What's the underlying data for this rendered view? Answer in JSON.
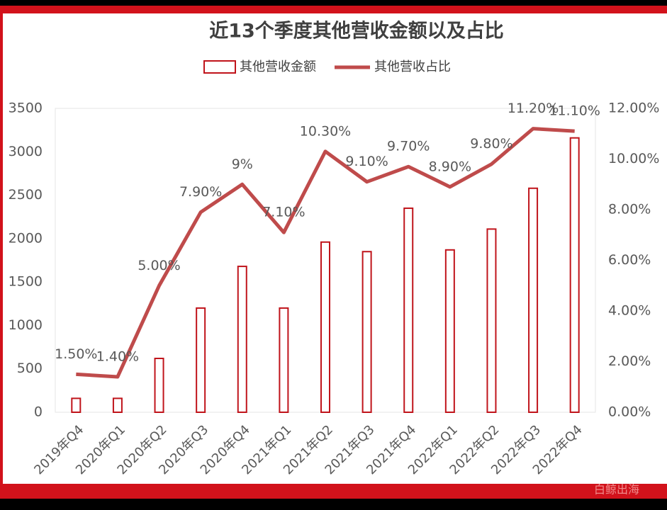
{
  "chart_data": {
    "type": "bar-line",
    "title": "近13个季度其他营收金额以及占比",
    "categories": [
      "2019年Q4",
      "2020年Q1",
      "2020年Q2",
      "2020年Q3",
      "2020年Q4",
      "2021年Q1",
      "2021年Q2",
      "2021年Q3",
      "2021年Q4",
      "2022年Q1",
      "2022年Q2",
      "2022年Q3",
      "2022年Q4"
    ],
    "series": [
      {
        "name": "其他营收金额",
        "color": "#c0141b",
        "values": [
          160,
          160,
          620,
          1200,
          1680,
          1200,
          1960,
          1850,
          2350,
          1870,
          2110,
          2580,
          3160
        ]
      },
      {
        "name": "其他营收占比",
        "color": "#bf4b4b",
        "axis": "y2",
        "values": [
          1.5,
          1.4,
          5.0,
          7.9,
          9,
          7.1,
          10.3,
          9.1,
          9.7,
          8.9,
          9.8,
          11.2,
          11.1
        ],
        "value_labels": [
          "1.50%",
          "1.40%",
          "5.00%",
          "7.90%",
          "9%",
          "7.10%",
          "10.30%",
          "9.10%",
          "9.70%",
          "8.90%",
          "9.80%",
          "11.20%",
          "11.10%"
        ]
      }
    ],
    "ylim": [
      0,
      3500
    ],
    "yticks": [
      0,
      500,
      1000,
      1500,
      2000,
      2500,
      3000,
      3500
    ],
    "y2lim": [
      0,
      12
    ],
    "y2ticks": [
      {
        "value": 0,
        "label": "0.00%"
      },
      {
        "value": 2,
        "label": "2.00%"
      },
      {
        "value": 4,
        "label": "4.00%"
      },
      {
        "value": 6,
        "label": "6.00%"
      },
      {
        "value": 8,
        "label": "8.00%"
      },
      {
        "value": 10,
        "label": "10.00%"
      },
      {
        "value": 12,
        "label": "12.00%"
      }
    ],
    "watermark": "白鲸出海"
  }
}
